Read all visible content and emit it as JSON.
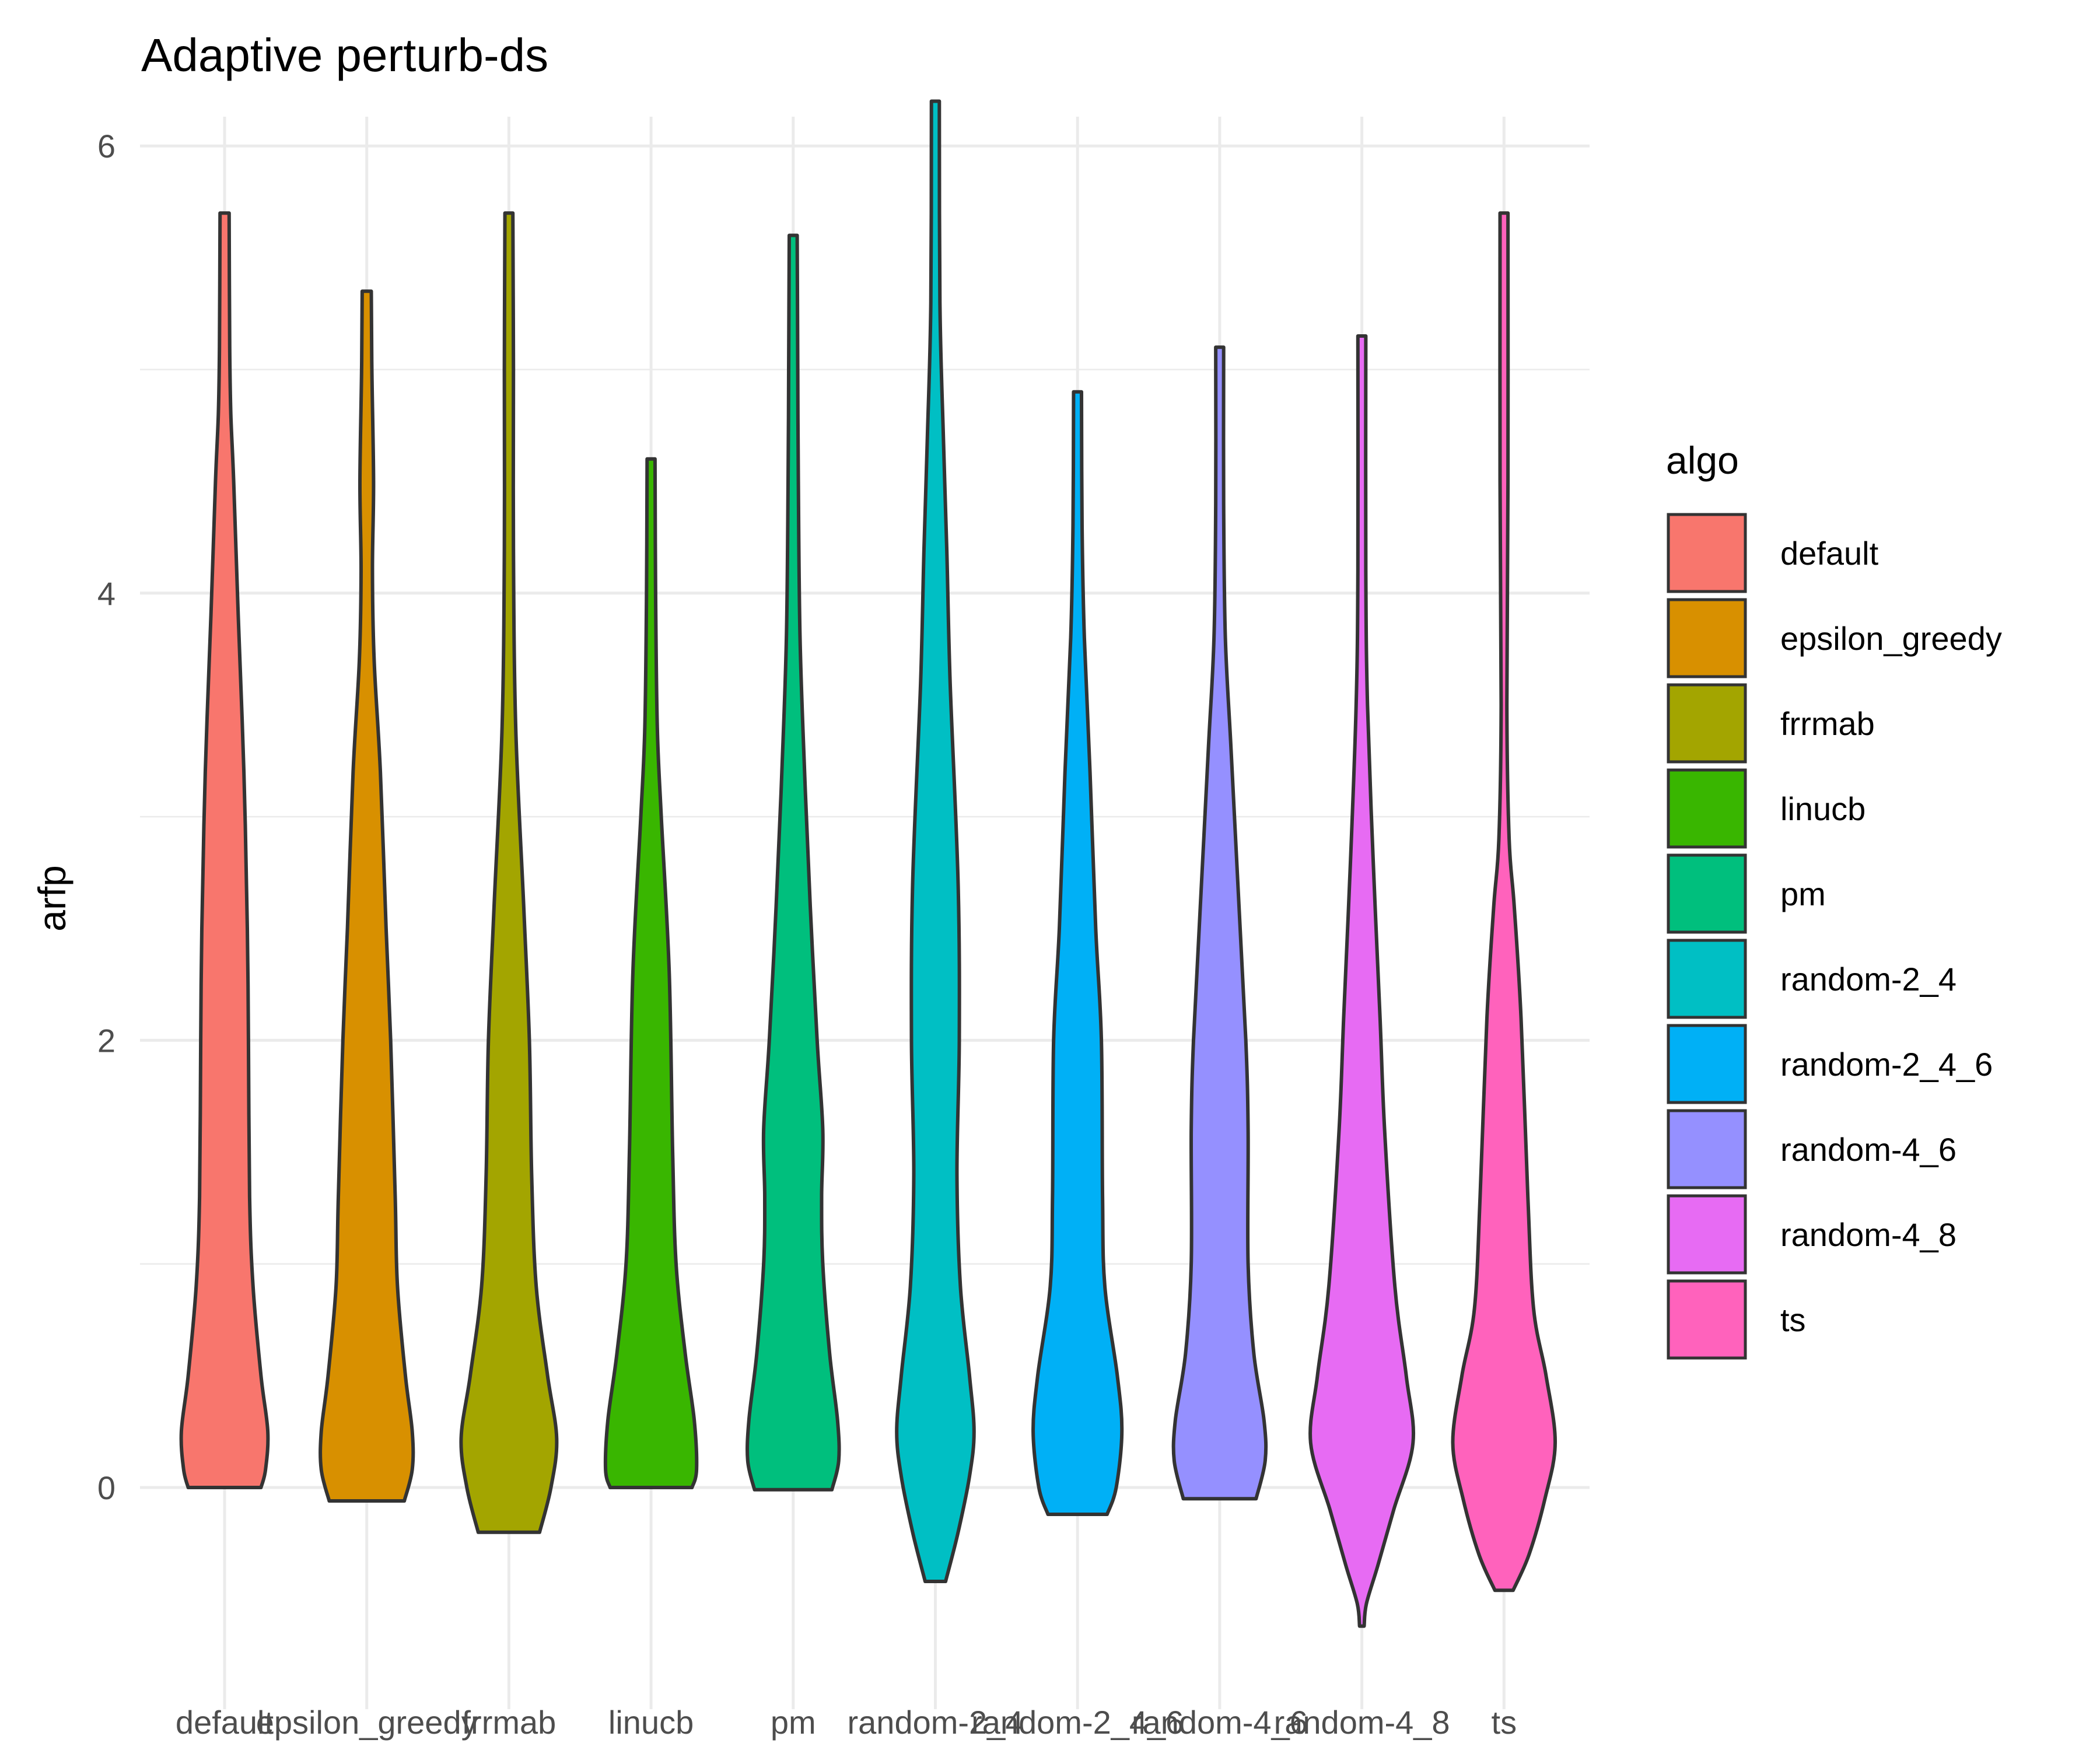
{
  "chart_data": {
    "type": "violin",
    "title": "Adaptive perturb-ds",
    "xlabel": "",
    "ylabel": "arfp",
    "ylim": [
      -0.72,
      6.0
    ],
    "yticks": [
      0,
      2,
      4,
      6
    ],
    "grid": true,
    "legend": {
      "title": "algo",
      "position": "right",
      "entries": [
        "default",
        "epsilon_greedy",
        "frrmab",
        "linucb",
        "pm",
        "random-2_4",
        "random-2_4_6",
        "random-4_6",
        "random-4_8",
        "ts"
      ]
    },
    "categories": [
      "default",
      "epsilon_greedy",
      "frrmab",
      "linucb",
      "pm",
      "random-2_4",
      "random-2_4_6",
      "random-4_6",
      "random-4_8",
      "ts"
    ],
    "series": [
      {
        "name": "default",
        "color": "#F8766D",
        "min": 0.0,
        "max": 5.7,
        "profile": [
          [
            0.0,
            0.32
          ],
          [
            0.08,
            0.36
          ],
          [
            0.25,
            0.38
          ],
          [
            0.5,
            0.32
          ],
          [
            0.9,
            0.25
          ],
          [
            1.3,
            0.22
          ],
          [
            2.0,
            0.21
          ],
          [
            2.5,
            0.2
          ],
          [
            3.2,
            0.17
          ],
          [
            3.9,
            0.12
          ],
          [
            4.5,
            0.08
          ],
          [
            4.8,
            0.055
          ],
          [
            5.1,
            0.045
          ],
          [
            5.7,
            0.04
          ]
        ]
      },
      {
        "name": "epsilon_greedy",
        "color": "#D89000",
        "min": -0.06,
        "max": 5.35,
        "profile": [
          [
            -0.06,
            0.33
          ],
          [
            0.08,
            0.4
          ],
          [
            0.25,
            0.4
          ],
          [
            0.5,
            0.34
          ],
          [
            0.9,
            0.27
          ],
          [
            1.3,
            0.25
          ],
          [
            2.0,
            0.21
          ],
          [
            2.5,
            0.17
          ],
          [
            3.2,
            0.12
          ],
          [
            3.7,
            0.065
          ],
          [
            4.1,
            0.05
          ],
          [
            4.5,
            0.06
          ],
          [
            5.0,
            0.045
          ],
          [
            5.35,
            0.04
          ]
        ]
      },
      {
        "name": "frrmab",
        "color": "#A3A500",
        "min": -0.2,
        "max": 5.7,
        "profile": [
          [
            -0.2,
            0.27
          ],
          [
            0.0,
            0.37
          ],
          [
            0.22,
            0.42
          ],
          [
            0.5,
            0.34
          ],
          [
            0.9,
            0.24
          ],
          [
            1.4,
            0.2
          ],
          [
            2.0,
            0.18
          ],
          [
            2.6,
            0.13
          ],
          [
            3.4,
            0.06
          ],
          [
            4.2,
            0.04
          ],
          [
            5.0,
            0.04
          ],
          [
            5.7,
            0.035
          ]
        ]
      },
      {
        "name": "linucb",
        "color": "#39B600",
        "min": 0.0,
        "max": 4.6,
        "profile": [
          [
            0.0,
            0.36
          ],
          [
            0.08,
            0.4
          ],
          [
            0.3,
            0.38
          ],
          [
            0.6,
            0.3
          ],
          [
            1.0,
            0.22
          ],
          [
            1.5,
            0.19
          ],
          [
            2.3,
            0.16
          ],
          [
            3.0,
            0.09
          ],
          [
            3.4,
            0.055
          ],
          [
            4.0,
            0.04
          ],
          [
            4.6,
            0.035
          ]
        ]
      },
      {
        "name": "pm",
        "color": "#00BF7D",
        "min": -0.01,
        "max": 5.6,
        "profile": [
          [
            -0.01,
            0.34
          ],
          [
            0.12,
            0.4
          ],
          [
            0.3,
            0.39
          ],
          [
            0.6,
            0.32
          ],
          [
            1.0,
            0.26
          ],
          [
            1.3,
            0.25
          ],
          [
            1.6,
            0.26
          ],
          [
            2.0,
            0.21
          ],
          [
            2.6,
            0.15
          ],
          [
            3.2,
            0.1
          ],
          [
            3.8,
            0.06
          ],
          [
            4.5,
            0.045
          ],
          [
            5.0,
            0.04
          ],
          [
            5.6,
            0.035
          ]
        ]
      },
      {
        "name": "random-2_4",
        "color": "#00BFC4",
        "min": -0.42,
        "max": 6.2,
        "profile": [
          [
            -0.42,
            0.09
          ],
          [
            -0.2,
            0.2
          ],
          [
            0.05,
            0.3
          ],
          [
            0.25,
            0.34
          ],
          [
            0.5,
            0.3
          ],
          [
            0.9,
            0.22
          ],
          [
            1.4,
            0.19
          ],
          [
            2.0,
            0.21
          ],
          [
            2.7,
            0.2
          ],
          [
            3.6,
            0.13
          ],
          [
            4.2,
            0.1
          ],
          [
            4.7,
            0.07
          ],
          [
            5.3,
            0.04
          ],
          [
            6.2,
            0.035
          ]
        ]
      },
      {
        "name": "random-2_4_6",
        "color": "#00B0F6",
        "min": -0.12,
        "max": 4.9,
        "profile": [
          [
            -0.12,
            0.26
          ],
          [
            0.0,
            0.34
          ],
          [
            0.25,
            0.39
          ],
          [
            0.5,
            0.35
          ],
          [
            0.9,
            0.24
          ],
          [
            1.3,
            0.22
          ],
          [
            2.0,
            0.21
          ],
          [
            2.5,
            0.16
          ],
          [
            3.2,
            0.11
          ],
          [
            3.8,
            0.06
          ],
          [
            4.3,
            0.04
          ],
          [
            4.9,
            0.035
          ]
        ]
      },
      {
        "name": "random-4_6",
        "color": "#9590FF",
        "min": -0.05,
        "max": 5.1,
        "profile": [
          [
            -0.05,
            0.32
          ],
          [
            0.12,
            0.4
          ],
          [
            0.3,
            0.39
          ],
          [
            0.6,
            0.3
          ],
          [
            1.0,
            0.25
          ],
          [
            1.6,
            0.25
          ],
          [
            2.0,
            0.23
          ],
          [
            2.6,
            0.17
          ],
          [
            3.3,
            0.1
          ],
          [
            3.8,
            0.05
          ],
          [
            4.4,
            0.035
          ],
          [
            5.1,
            0.035
          ]
        ]
      },
      {
        "name": "random-4_8",
        "color": "#E76BF3",
        "min": -0.62,
        "max": 5.15,
        "profile": [
          [
            -0.62,
            0.02
          ],
          [
            -0.52,
            0.04
          ],
          [
            -0.35,
            0.14
          ],
          [
            -0.1,
            0.28
          ],
          [
            0.2,
            0.45
          ],
          [
            0.5,
            0.39
          ],
          [
            0.9,
            0.29
          ],
          [
            1.6,
            0.2
          ],
          [
            2.1,
            0.16
          ],
          [
            2.8,
            0.1
          ],
          [
            3.5,
            0.05
          ],
          [
            4.1,
            0.035
          ],
          [
            5.15,
            0.035
          ]
        ]
      },
      {
        "name": "ts",
        "color": "#FF62BC",
        "min": -0.46,
        "max": 5.7,
        "profile": [
          [
            -0.46,
            0.08
          ],
          [
            -0.3,
            0.22
          ],
          [
            -0.05,
            0.36
          ],
          [
            0.2,
            0.45
          ],
          [
            0.5,
            0.37
          ],
          [
            0.8,
            0.26
          ],
          [
            1.3,
            0.21
          ],
          [
            2.1,
            0.15
          ],
          [
            2.6,
            0.09
          ],
          [
            2.9,
            0.045
          ],
          [
            3.5,
            0.025
          ],
          [
            4.5,
            0.035
          ],
          [
            5.7,
            0.035
          ]
        ]
      }
    ]
  }
}
